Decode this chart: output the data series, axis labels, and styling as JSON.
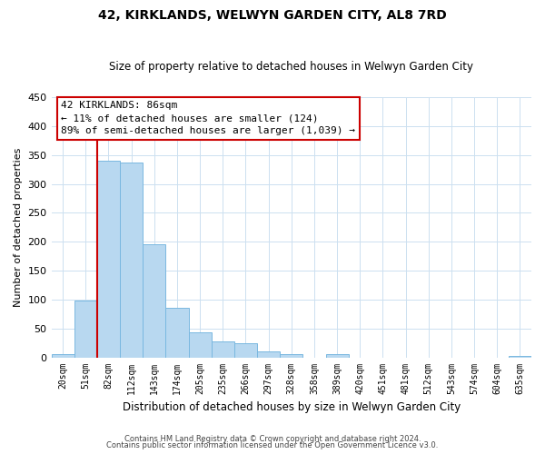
{
  "title": "42, KIRKLANDS, WELWYN GARDEN CITY, AL8 7RD",
  "subtitle": "Size of property relative to detached houses in Welwyn Garden City",
  "xlabel": "Distribution of detached houses by size in Welwyn Garden City",
  "ylabel": "Number of detached properties",
  "bar_labels": [
    "20sqm",
    "51sqm",
    "82sqm",
    "112sqm",
    "143sqm",
    "174sqm",
    "205sqm",
    "235sqm",
    "266sqm",
    "297sqm",
    "328sqm",
    "358sqm",
    "389sqm",
    "420sqm",
    "451sqm",
    "481sqm",
    "512sqm",
    "543sqm",
    "574sqm",
    "604sqm",
    "635sqm"
  ],
  "bar_values": [
    5,
    98,
    340,
    337,
    196,
    86,
    44,
    27,
    25,
    11,
    5,
    0,
    5,
    0,
    0,
    0,
    0,
    0,
    0,
    0,
    2
  ],
  "bar_color": "#b8d8f0",
  "bar_edge_color": "#7ab8e0",
  "vline_color": "#cc0000",
  "vline_x_bar_idx": 2,
  "annotation_title": "42 KIRKLANDS: 86sqm",
  "annotation_line1": "← 11% of detached houses are smaller (124)",
  "annotation_line2": "89% of semi-detached houses are larger (1,039) →",
  "box_facecolor": "#ffffff",
  "box_edgecolor": "#cc0000",
  "ylim": [
    0,
    450
  ],
  "yticks": [
    0,
    50,
    100,
    150,
    200,
    250,
    300,
    350,
    400,
    450
  ],
  "footer_line1": "Contains HM Land Registry data © Crown copyright and database right 2024.",
  "footer_line2": "Contains public sector information licensed under the Open Government Licence v3.0.",
  "bg_color": "#ffffff",
  "grid_color": "#cce0f0"
}
